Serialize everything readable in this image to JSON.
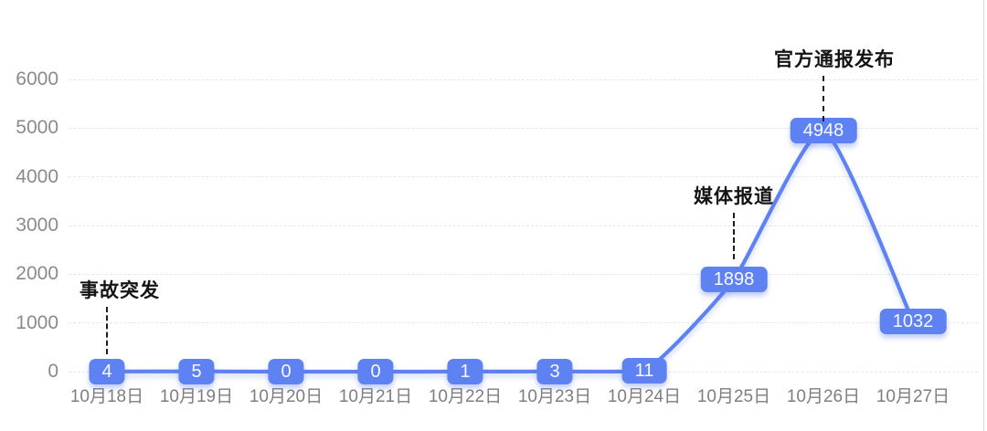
{
  "chart_data": {
    "type": "line",
    "title": "",
    "xlabel": "",
    "ylabel": "",
    "categories": [
      "10月18日",
      "10月19日",
      "10月20日",
      "10月21日",
      "10月22日",
      "10月23日",
      "10月24日",
      "10月25日",
      "10月26日",
      "10月27日"
    ],
    "values": [
      4,
      5,
      0,
      0,
      1,
      3,
      11,
      1898,
      4948,
      1032
    ],
    "y_ticks": [
      "0",
      "1000",
      "2000",
      "3000",
      "4000",
      "5000",
      "6000"
    ],
    "ylim": [
      0,
      6000
    ],
    "grid": "horizontal-dashed",
    "legend_position": "none",
    "data_labels_shown": true,
    "annotations": [
      {
        "text": "事故突发",
        "point_index": 0
      },
      {
        "text": "媒体报道",
        "point_index": 7
      },
      {
        "text": "官方通报发布",
        "point_index": 8
      }
    ],
    "colors": {
      "line": "#5F82F2",
      "badge_bg": "#5F82F2",
      "badge_text": "#FFFFFF",
      "axis_label": "#8A8A8A",
      "grid_line": "#E7E7E7",
      "annotation_text": "#141414"
    }
  }
}
